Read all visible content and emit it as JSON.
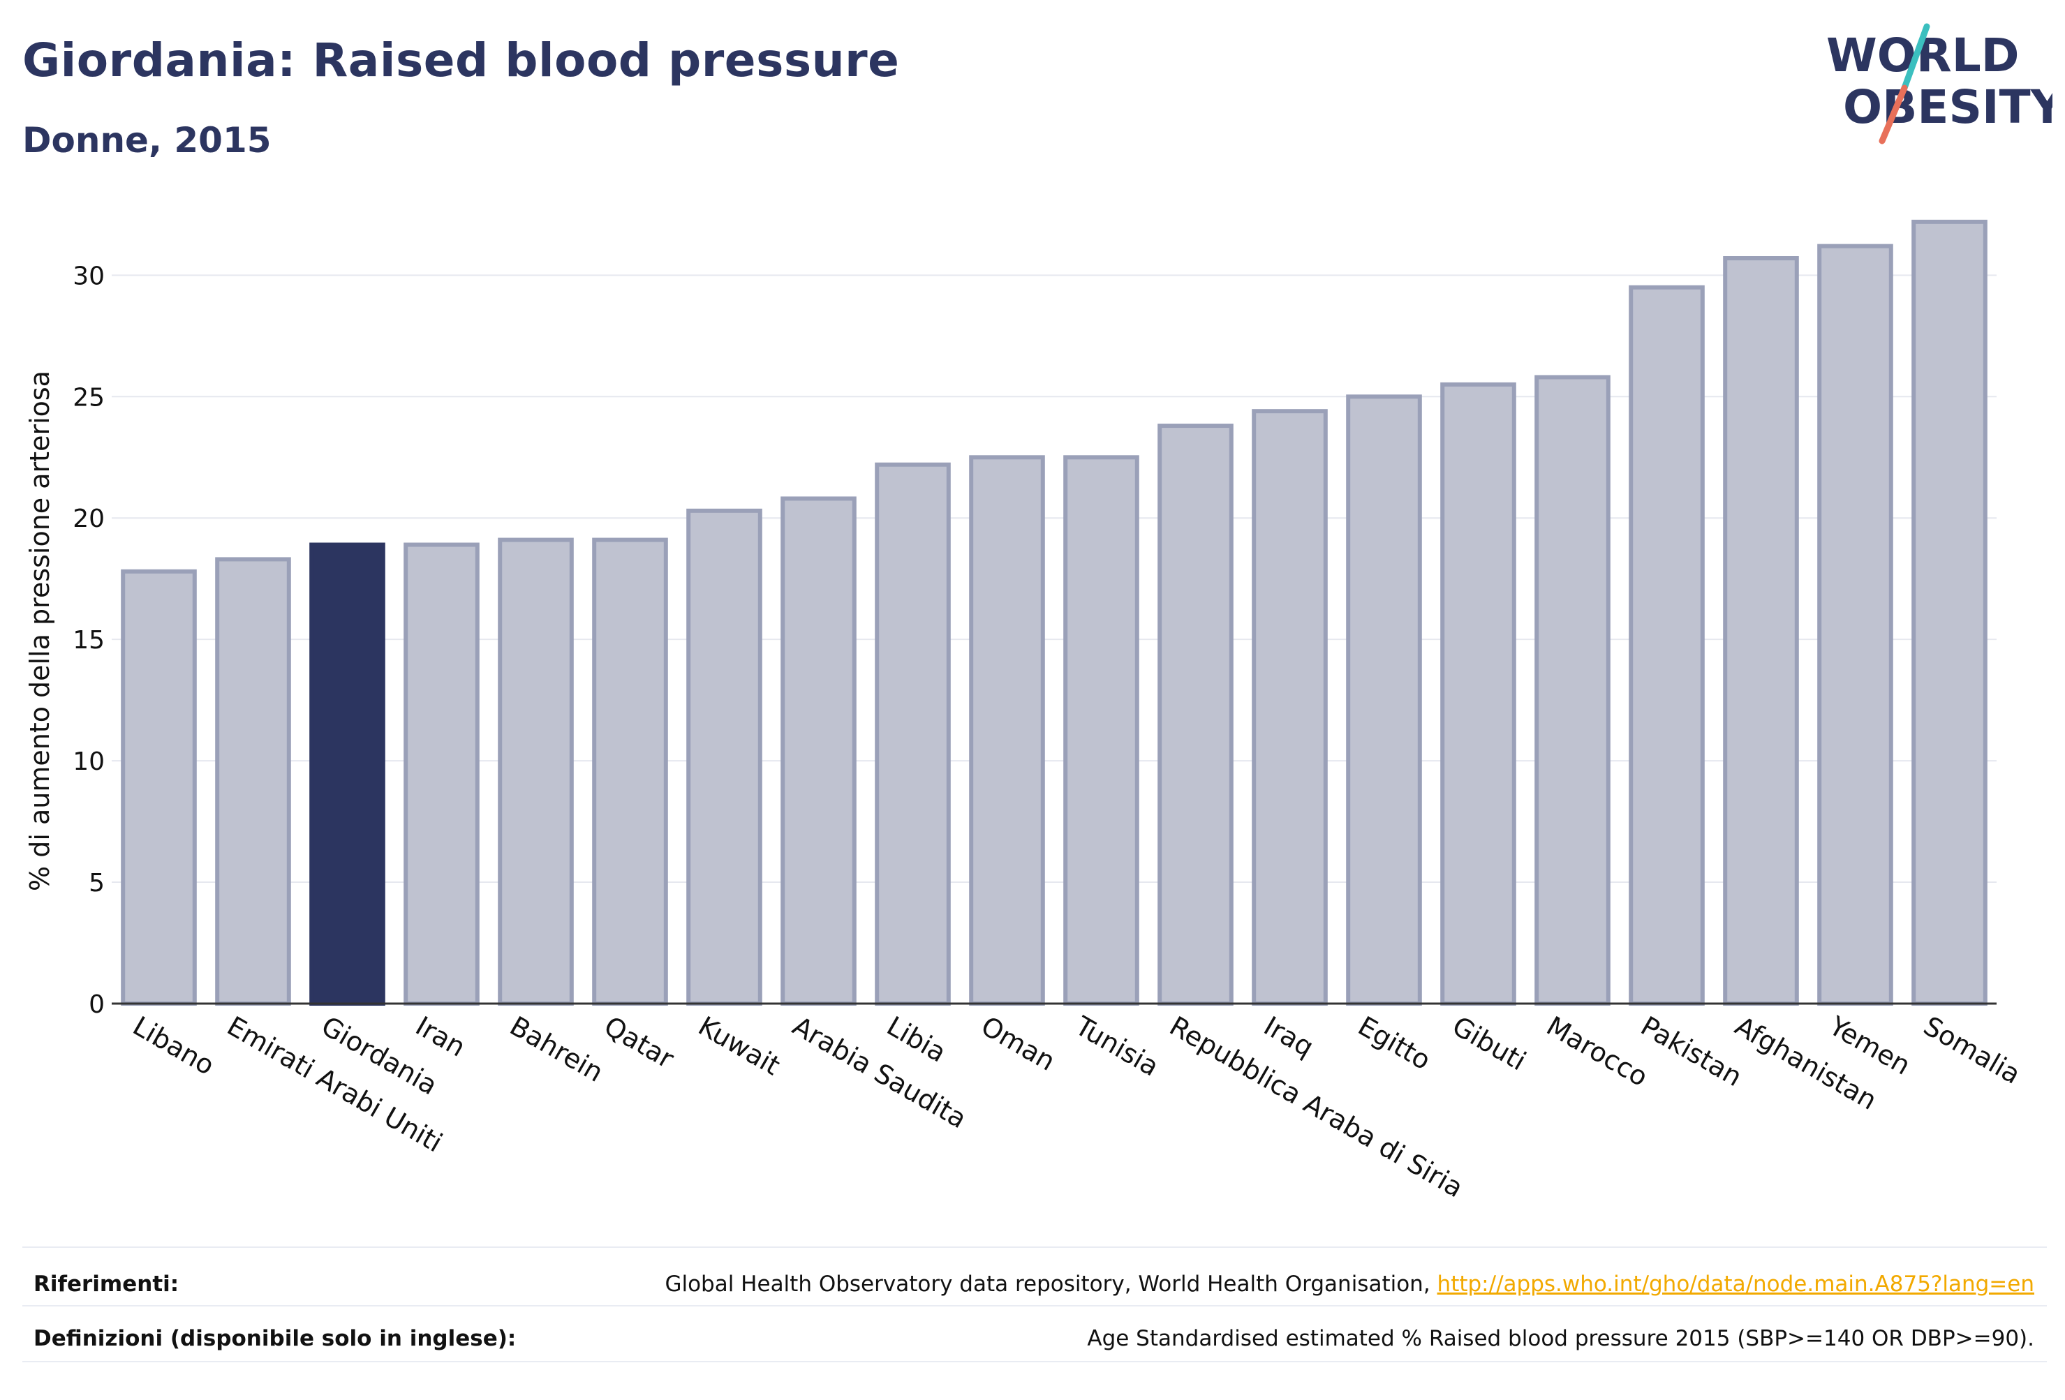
{
  "header": {
    "title": "Giordania: Raised blood pressure",
    "subtitle": "Donne, 2015"
  },
  "logo": {
    "line1": "WORLD",
    "line2": "OBESITY",
    "accent_colors": [
      "#3bbfbf",
      "#e8705a"
    ]
  },
  "colors": {
    "bar_default_fill": "#bfc2d0",
    "bar_default_stroke": "#9aa0b8",
    "bar_highlight": "#2c3560",
    "grid": "#e6e8ef",
    "axis": "#333333",
    "link": "#f2a900"
  },
  "chart_data": {
    "type": "bar",
    "categories": [
      "Libano",
      "Emirati Arabi Uniti",
      "Giordania",
      "Iran",
      "Bahrein",
      "Qatar",
      "Kuwait",
      "Arabia Saudita",
      "Libia",
      "Oman",
      "Tunisia",
      "Repubblica Araba di Siria",
      "Iraq",
      "Egitto",
      "Gibuti",
      "Marocco",
      "Pakistan",
      "Afghanistan",
      "Yemen",
      "Somalia"
    ],
    "values": [
      17.8,
      18.3,
      18.9,
      18.9,
      19.1,
      19.1,
      20.3,
      20.8,
      22.2,
      22.5,
      22.5,
      23.8,
      24.4,
      25.0,
      25.5,
      25.8,
      29.5,
      30.7,
      31.2,
      32.2
    ],
    "highlight": "Giordania",
    "ylabel": "% di aumento della pressione arteriosa",
    "xlabel": "",
    "ylim": [
      0,
      33
    ],
    "yticks": [
      0,
      5,
      10,
      15,
      20,
      25,
      30
    ],
    "grid": true,
    "legend": "none"
  },
  "footer": {
    "references_label": "Riferimenti:",
    "references_text": "Global Health Observatory data repository, World Health Organisation,",
    "references_link": "http://apps.who.int/gho/data/node.main.A875?lang=en",
    "definitions_label": "Definizioni (disponibile solo in inglese):",
    "definitions_text": "Age Standardised estimated % Raised blood pressure 2015 (SBP>=140 OR DBP>=90)."
  }
}
